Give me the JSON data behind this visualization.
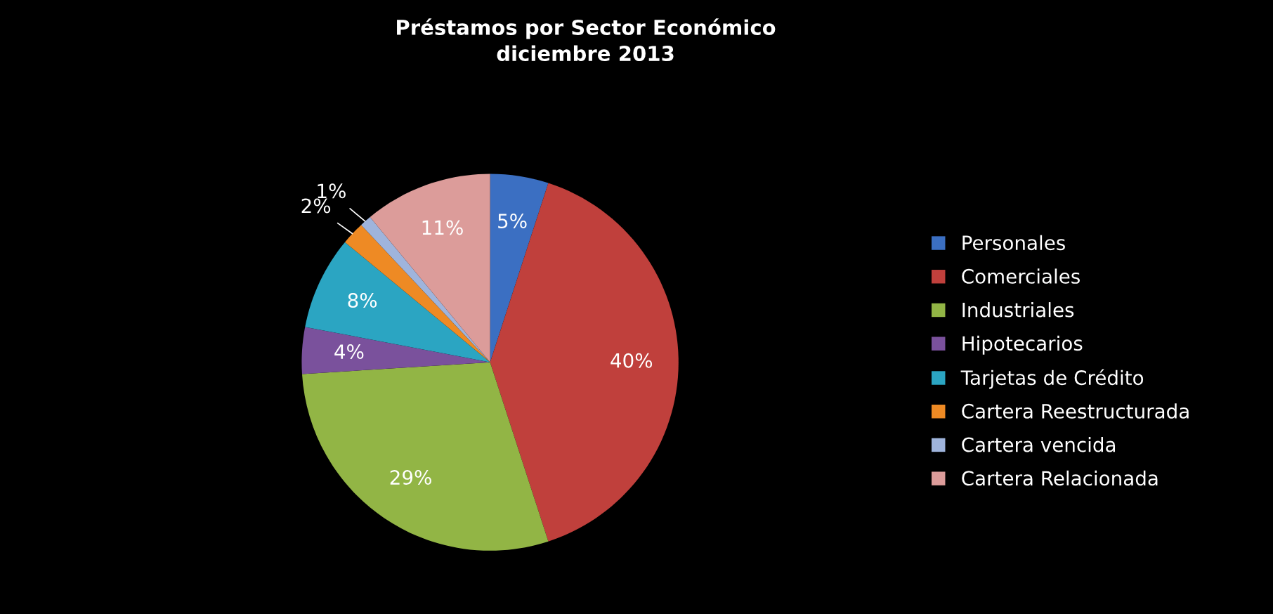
{
  "chart_data": {
    "type": "pie",
    "title": "Préstamos por Sector Económico\ndiciembre 2013",
    "categories": [
      "Personales",
      "Comerciales",
      "Industriales",
      "Hipotecarios",
      "Tarjetas de Crédito",
      "Cartera Reestructurada",
      "Cartera vencida",
      "Cartera Relacionada"
    ],
    "values": [
      5,
      40,
      29,
      4,
      8,
      2,
      1,
      11
    ],
    "colors": [
      "#3b6fc2",
      "#c0403c",
      "#92b545",
      "#7a519c",
      "#2ba5c2",
      "#ee8a24",
      "#9fb4dc",
      "#dc9c9a"
    ],
    "value_labels": [
      "5%",
      "40%",
      "29%",
      "4%",
      "8%",
      "2%",
      "1%",
      "11%"
    ],
    "legend": "right"
  }
}
